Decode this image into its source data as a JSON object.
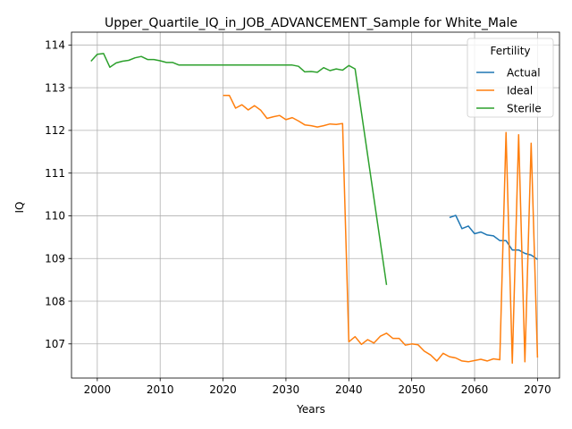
{
  "chart_data": {
    "type": "line",
    "title": "Upper_Quartile_IQ_in_JOB_ADVANCEMENT_Sample for White_Male",
    "xlabel": "Years",
    "ylabel": "IQ",
    "xlim": [
      1995.9,
      2073.5
    ],
    "ylim": [
      106.2,
      114.3
    ],
    "xticks": [
      2000,
      2010,
      2020,
      2030,
      2040,
      2050,
      2060,
      2070
    ],
    "yticks": [
      107,
      108,
      109,
      110,
      111,
      112,
      113,
      114
    ],
    "grid": true,
    "legend": {
      "title": "Fertility",
      "placement": "top-right"
    },
    "series": [
      {
        "name": "Actual",
        "color": "#1f77b4",
        "x": [
          2056,
          2057,
          2058,
          2059,
          2060,
          2061,
          2062,
          2063,
          2064,
          2065,
          2066,
          2067,
          2068,
          2069,
          2070
        ],
        "y": [
          109.96,
          110.01,
          109.7,
          109.76,
          109.58,
          109.62,
          109.55,
          109.53,
          109.42,
          109.42,
          109.2,
          109.2,
          109.12,
          109.08,
          108.98
        ]
      },
      {
        "name": "Ideal",
        "color": "#ff7f0e",
        "x": [
          2020,
          2021,
          2022,
          2023,
          2024,
          2025,
          2026,
          2027,
          2028,
          2029,
          2030,
          2031,
          2032,
          2033,
          2034,
          2035,
          2036,
          2037,
          2038,
          2039,
          2040,
          2041,
          2042,
          2043,
          2044,
          2045,
          2046,
          2047,
          2048,
          2049,
          2050,
          2051,
          2052,
          2053,
          2054,
          2055,
          2056,
          2057,
          2058,
          2059,
          2060,
          2061,
          2062,
          2063,
          2064,
          2065,
          2066,
          2067,
          2068,
          2069,
          2070
        ],
        "y": [
          112.82,
          112.82,
          112.52,
          112.6,
          112.48,
          112.58,
          112.47,
          112.28,
          112.32,
          112.35,
          112.25,
          112.3,
          112.22,
          112.13,
          112.11,
          112.08,
          112.11,
          112.15,
          112.14,
          112.16,
          107.05,
          107.17,
          106.99,
          107.1,
          107.02,
          107.18,
          107.25,
          107.13,
          107.13,
          106.97,
          107.0,
          106.98,
          106.83,
          106.74,
          106.6,
          106.78,
          106.7,
          106.67,
          106.6,
          106.58,
          106.61,
          106.64,
          106.6,
          106.65,
          106.63,
          111.95,
          106.55,
          111.9,
          106.58,
          111.7,
          106.68
        ]
      },
      {
        "name": "Sterile",
        "color": "#2ca02c",
        "x": [
          1999,
          2000,
          2001,
          2002,
          2003,
          2004,
          2005,
          2006,
          2007,
          2008,
          2009,
          2010,
          2011,
          2012,
          2013,
          2014,
          2015,
          2016,
          2017,
          2018,
          2019,
          2020,
          2021,
          2022,
          2023,
          2024,
          2025,
          2026,
          2027,
          2028,
          2029,
          2030,
          2031,
          2032,
          2033,
          2034,
          2035,
          2036,
          2037,
          2038,
          2039,
          2040,
          2041,
          2046
        ],
        "y": [
          113.62,
          113.78,
          113.8,
          113.48,
          113.58,
          113.62,
          113.64,
          113.7,
          113.73,
          113.66,
          113.66,
          113.63,
          113.59,
          113.59,
          113.53,
          113.53,
          113.53,
          113.53,
          113.53,
          113.53,
          113.53,
          113.53,
          113.53,
          113.53,
          113.53,
          113.53,
          113.53,
          113.53,
          113.53,
          113.53,
          113.53,
          113.53,
          113.53,
          113.5,
          113.37,
          113.38,
          113.36,
          113.47,
          113.4,
          113.44,
          113.41,
          113.52,
          113.44,
          108.38
        ]
      }
    ]
  }
}
